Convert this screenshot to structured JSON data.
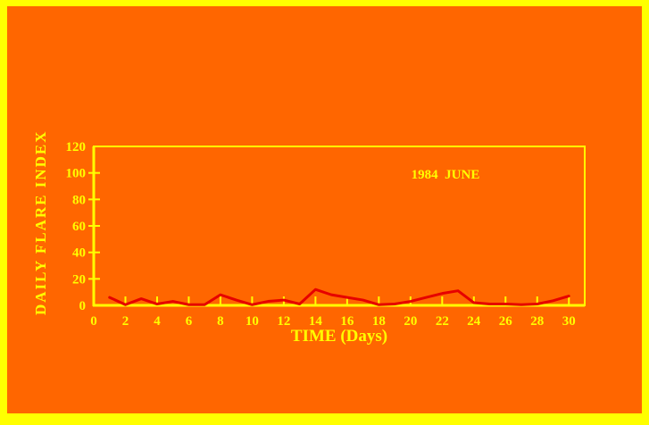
{
  "window": {
    "background_color": "#FF6600",
    "border_color": "#FFFF00"
  },
  "chart_data": {
    "type": "line",
    "title": "1984  JUNE",
    "xlabel": "TIME (Days)",
    "ylabel": "DAILY FLARE INDEX",
    "x": [
      1,
      2,
      3,
      4,
      5,
      6,
      7,
      8,
      9,
      10,
      11,
      12,
      13,
      14,
      15,
      16,
      17,
      18,
      19,
      20,
      21,
      22,
      23,
      24,
      25,
      26,
      27,
      28,
      29,
      30
    ],
    "values": [
      6,
      0.5,
      5,
      1,
      3,
      0.5,
      0.5,
      8,
      4,
      0.5,
      3,
      4,
      1,
      12,
      8,
      6,
      4,
      0.5,
      1,
      3,
      6,
      9,
      11,
      2,
      1,
      1,
      0.5,
      1,
      3.5,
      7
    ],
    "xticks": [
      0,
      2,
      4,
      6,
      8,
      10,
      12,
      14,
      16,
      18,
      20,
      22,
      24,
      26,
      28,
      30
    ],
    "yticks": [
      0,
      20,
      40,
      60,
      80,
      100,
      120
    ],
    "xlim": [
      0,
      31
    ],
    "ylim": [
      0,
      120
    ],
    "grid": false,
    "legend": "none",
    "line_color": "#E60000",
    "axis_color": "#FFFF00",
    "tick_label_color": "#FFFF00"
  }
}
